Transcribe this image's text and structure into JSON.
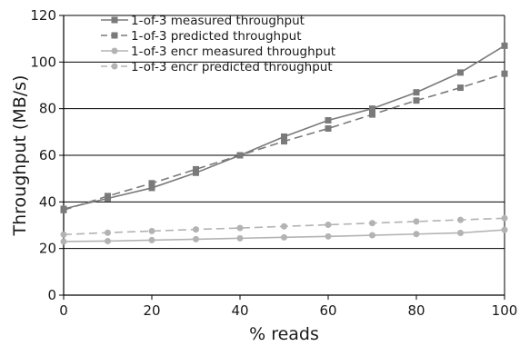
{
  "chart_data": {
    "type": "line",
    "title": "",
    "xlabel": "% reads",
    "ylabel": "Throughput (MB/s)",
    "xlim": [
      0,
      100
    ],
    "ylim": [
      0,
      120
    ],
    "x_ticks": [
      0,
      20,
      40,
      60,
      80,
      100
    ],
    "y_ticks": [
      0,
      20,
      40,
      60,
      80,
      100,
      120
    ],
    "grid": "horizontal",
    "legend_position": "top-left",
    "x": [
      0,
      10,
      20,
      30,
      40,
      50,
      60,
      70,
      80,
      90,
      100
    ],
    "series": [
      {
        "name": "1-of-3 measured throughput",
        "values": [
          37,
          41.5,
          46,
          52.5,
          60,
          68,
          75,
          80,
          87,
          95.5,
          107
        ],
        "color": "#7a7a7a",
        "dashed": false,
        "marker": "square"
      },
      {
        "name": "1-of-3 predicted throughput",
        "values": [
          36.5,
          42.5,
          48,
          54,
          60,
          66,
          71.5,
          77.5,
          83.5,
          89,
          95
        ],
        "color": "#7a7a7a",
        "dashed": true,
        "marker": "square"
      },
      {
        "name": "1-of-3 encr measured throughput",
        "values": [
          23,
          23.2,
          23.6,
          24,
          24.4,
          24.8,
          25.2,
          25.7,
          26.2,
          26.7,
          28
        ],
        "color": "#b3b3b3",
        "dashed": false,
        "marker": "circle"
      },
      {
        "name": "1-of-3 encr predicted throughput",
        "values": [
          26,
          26.8,
          27.5,
          28.2,
          28.8,
          29.5,
          30.2,
          30.9,
          31.6,
          32.3,
          33
        ],
        "color": "#b3b3b3",
        "dashed": true,
        "marker": "circle"
      }
    ]
  }
}
